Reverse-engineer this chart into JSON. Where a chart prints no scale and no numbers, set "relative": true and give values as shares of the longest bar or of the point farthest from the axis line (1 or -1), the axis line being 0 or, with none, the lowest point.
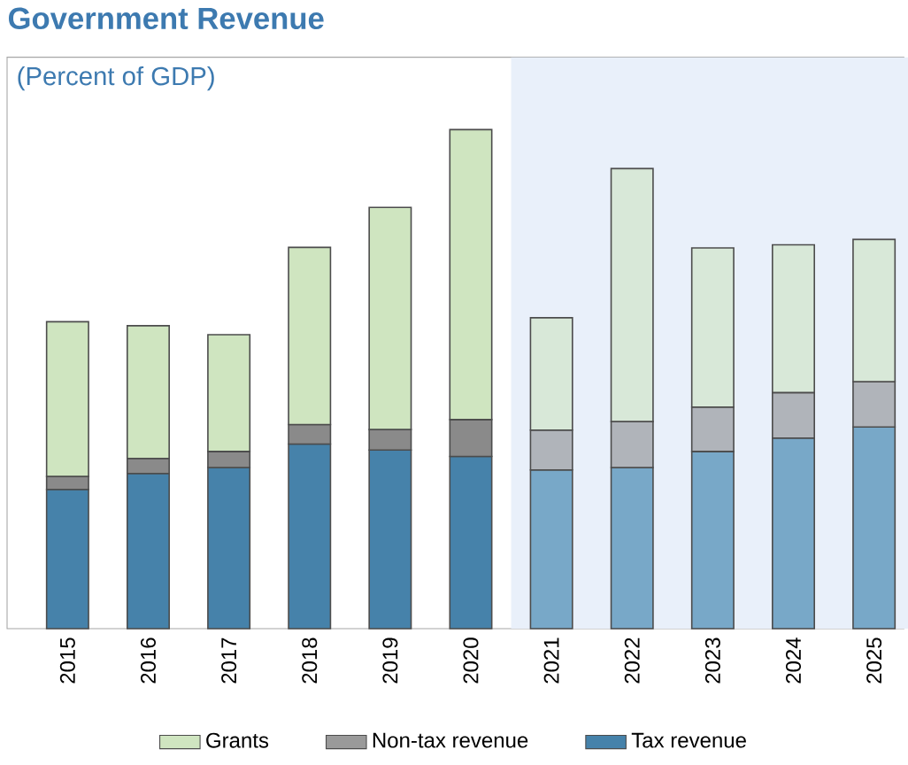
{
  "chart_data": {
    "type": "bar",
    "title": "Government Revenue",
    "subtitle": "(Percent of GDP)",
    "relative": true,
    "stacked": true,
    "categories": [
      "2015",
      "2016",
      "2017",
      "2018",
      "2019",
      "2020",
      "2021",
      "2022",
      "2023",
      "2024",
      "2025"
    ],
    "series": [
      {
        "name": "Tax revenue",
        "color": "#4682aa",
        "colors": [
          "#4682aa",
          "#4682aa",
          "#4682aa",
          "#4682aa",
          "#4682aa",
          "#4682aa",
          "#78a8c8",
          "#78a8c8",
          "#78a8c8",
          "#78a8c8",
          "#78a8c8"
        ],
        "values": [
          0.279,
          0.311,
          0.323,
          0.37,
          0.358,
          0.345,
          0.318,
          0.323,
          0.355,
          0.382,
          0.404
        ]
      },
      {
        "name": "Non-tax revenue",
        "color": "#9a9a9a",
        "colors": [
          "#8a8a8a",
          "#8a8a8a",
          "#8a8a8a",
          "#8a8a8a",
          "#8a8a8a",
          "#8a8a8a",
          "#b0b4ba",
          "#b0b4ba",
          "#b0b4ba",
          "#b0b4ba",
          "#b0b4ba"
        ],
        "values": [
          0.026,
          0.03,
          0.032,
          0.039,
          0.041,
          0.074,
          0.08,
          0.092,
          0.089,
          0.091,
          0.091
        ]
      },
      {
        "name": "Grants",
        "color": "#cfe5c0",
        "colors": [
          "#cfe5c0",
          "#cfe5c0",
          "#cfe5c0",
          "#cfe5c0",
          "#cfe5c0",
          "#cfe5c0",
          "#d8e8d8",
          "#d8e8d8",
          "#d8e8d8",
          "#d8e8d8",
          "#d8e8d8"
        ],
        "values": [
          0.31,
          0.266,
          0.234,
          0.355,
          0.445,
          0.581,
          0.225,
          0.507,
          0.319,
          0.296,
          0.285
        ]
      }
    ],
    "bands": [
      {
        "axis": "x",
        "from": "2021",
        "to": "2025",
        "color": "#e9f0fa"
      }
    ],
    "legend": "bottom"
  }
}
